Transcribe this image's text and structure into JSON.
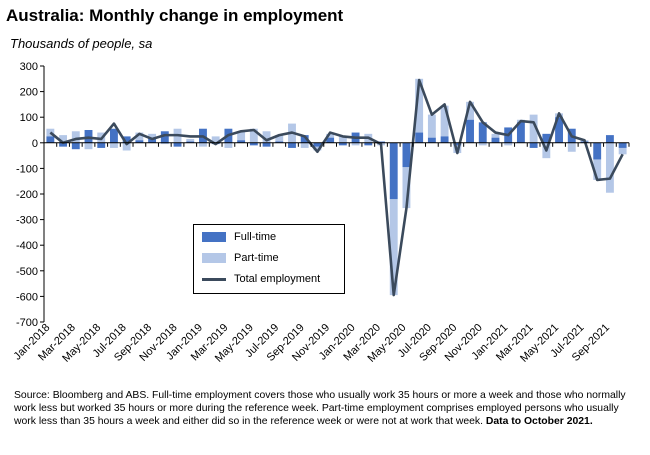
{
  "title": "Australia: Monthly change in employment",
  "subtitle": "Thousands of people, sa",
  "source": {
    "text": "Source: Bloomberg and ABS.  Full-time employment covers those who usually work 35 hours or more a week and those who normally work less but worked 35 hours or  more during the reference week.  Part-time employment comprises employed persons who usually work less than 35 hours a week and either did so in the reference week or were not at work that week.",
    "note": "Data to  October  2021."
  },
  "colors": {
    "full_time": "#4472c4",
    "part_time": "#b4c7e7",
    "total": "#3b4a5c",
    "axis": "#000000"
  },
  "chart_data": {
    "type": "bar",
    "title": "Australia: Monthly change in employment",
    "subtitle": "Thousands of people, sa",
    "ylim": [
      -700,
      300
    ],
    "yticks": [
      300,
      200,
      100,
      0,
      -100,
      -200,
      -300,
      -400,
      -500,
      -600,
      -700
    ],
    "grid": false,
    "legend_position": "lower-left-center",
    "categories": [
      "Jan-2018",
      "Feb-2018",
      "Mar-2018",
      "Apr-2018",
      "May-2018",
      "Jun-2018",
      "Jul-2018",
      "Aug-2018",
      "Sep-2018",
      "Oct-2018",
      "Nov-2018",
      "Dec-2018",
      "Jan-2019",
      "Feb-2019",
      "Mar-2019",
      "Apr-2019",
      "May-2019",
      "Jun-2019",
      "Jul-2019",
      "Aug-2019",
      "Sep-2019",
      "Oct-2019",
      "Nov-2019",
      "Dec-2019",
      "Jan-2020",
      "Feb-2020",
      "Mar-2020",
      "Apr-2020",
      "May-2020",
      "Jun-2020",
      "Jul-2020",
      "Aug-2020",
      "Sep-2020",
      "Oct-2020",
      "Nov-2020",
      "Dec-2020",
      "Jan-2021",
      "Feb-2021",
      "Mar-2021",
      "Apr-2021",
      "May-2021",
      "Jun-2021",
      "Jul-2021",
      "Aug-2021",
      "Sep-2021",
      "Oct-2021"
    ],
    "tick_labels": [
      "Jan-2018",
      "Mar-2018",
      "May-2018",
      "Jul-2018",
      "Sep-2018",
      "Nov-2018",
      "Jan-2019",
      "Mar-2019",
      "May-2019",
      "Jul-2019",
      "Sep-2019",
      "Nov-2019",
      "Jan-2020",
      "Mar-2020",
      "May-2020",
      "Jul-2020",
      "Sep-2020",
      "Nov-2020",
      "Jan-2021",
      "Mar-2021",
      "May-2021",
      "Jul-2021",
      "Sep-2021"
    ],
    "series": [
      {
        "name": "Full-time",
        "kind": "bar",
        "values": [
          25,
          -15,
          -25,
          50,
          -20,
          55,
          25,
          10,
          20,
          45,
          -15,
          5,
          55,
          -5,
          55,
          10,
          -10,
          -15,
          5,
          -20,
          30,
          -15,
          20,
          -10,
          40,
          -10,
          5,
          -220,
          -95,
          40,
          20,
          25,
          -10,
          90,
          80,
          20,
          60,
          80,
          -20,
          35,
          100,
          55,
          5,
          -65,
          30,
          -20
        ]
      },
      {
        "name": "Part-time",
        "kind": "bar",
        "values": [
          30,
          30,
          45,
          -25,
          40,
          -20,
          -30,
          30,
          15,
          -5,
          55,
          10,
          -15,
          25,
          -20,
          35,
          55,
          45,
          25,
          75,
          -20,
          -15,
          15,
          25,
          -10,
          35,
          -10,
          -375,
          -160,
          210,
          90,
          120,
          -30,
          70,
          -10,
          15,
          -10,
          10,
          110,
          -60,
          15,
          -35,
          5,
          -80,
          -195,
          -25
        ]
      },
      {
        "name": "Total employment",
        "kind": "line",
        "values": [
          40,
          0,
          15,
          20,
          15,
          75,
          -5,
          35,
          15,
          30,
          30,
          25,
          25,
          -5,
          30,
          45,
          50,
          10,
          30,
          40,
          25,
          -35,
          40,
          25,
          20,
          20,
          -5,
          -595,
          -255,
          245,
          110,
          150,
          -40,
          160,
          80,
          40,
          30,
          85,
          80,
          -30,
          115,
          25,
          10,
          -145,
          -140,
          -45
        ]
      }
    ]
  },
  "legend": {
    "full_time": "Full-time",
    "part_time": "Part-time",
    "total": "Total employment"
  }
}
